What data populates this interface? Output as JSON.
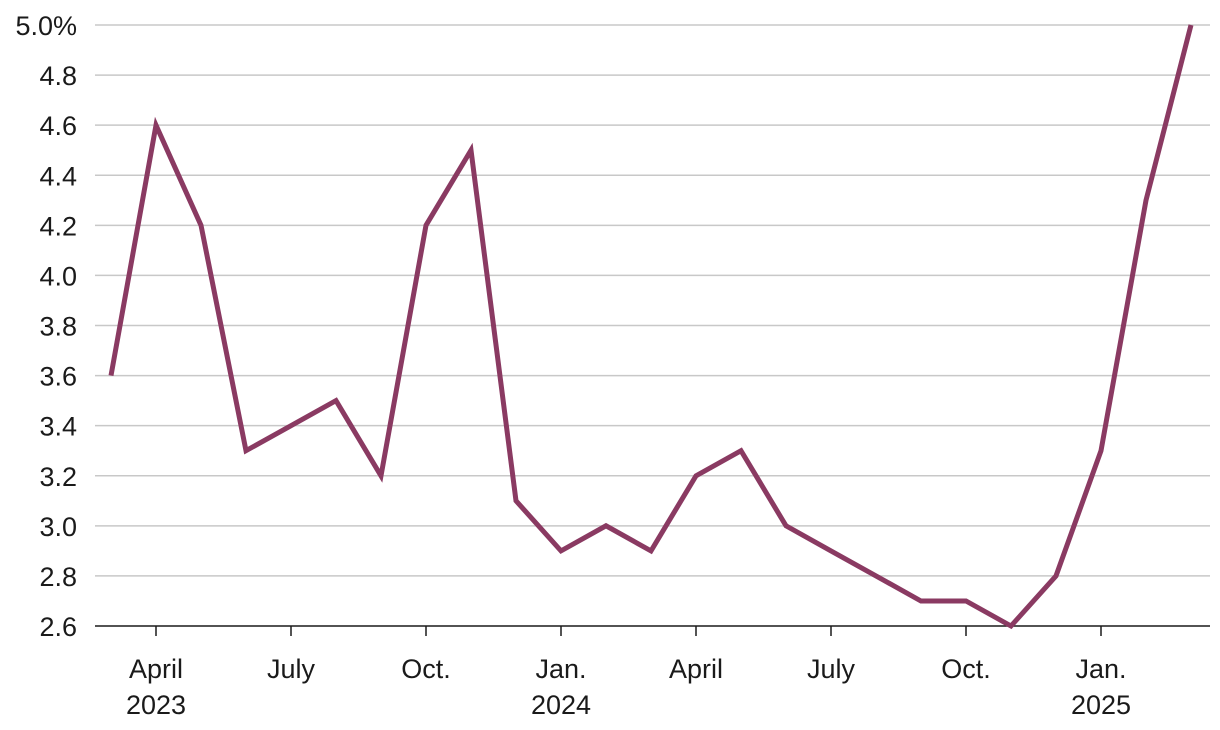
{
  "chart_data": {
    "type": "line",
    "title": "",
    "xlabel": "",
    "ylabel": "",
    "ylim": [
      2.6,
      5.0
    ],
    "y_ticks": [
      {
        "value": 5.0,
        "label": "5.0%"
      },
      {
        "value": 4.8,
        "label": "4.8"
      },
      {
        "value": 4.6,
        "label": "4.6"
      },
      {
        "value": 4.4,
        "label": "4.4"
      },
      {
        "value": 4.2,
        "label": "4.2"
      },
      {
        "value": 4.0,
        "label": "4.0"
      },
      {
        "value": 3.8,
        "label": "3.8"
      },
      {
        "value": 3.6,
        "label": "3.6"
      },
      {
        "value": 3.4,
        "label": "3.4"
      },
      {
        "value": 3.2,
        "label": "3.2"
      },
      {
        "value": 3.0,
        "label": "3.0"
      },
      {
        "value": 2.8,
        "label": "2.8"
      },
      {
        "value": 2.6,
        "label": "2.6"
      }
    ],
    "x_ticks": [
      {
        "date": "2023-04",
        "label": "April",
        "sublabel": "2023"
      },
      {
        "date": "2023-07",
        "label": "July",
        "sublabel": ""
      },
      {
        "date": "2023-10",
        "label": "Oct.",
        "sublabel": ""
      },
      {
        "date": "2024-01",
        "label": "Jan.",
        "sublabel": "2024"
      },
      {
        "date": "2024-04",
        "label": "April",
        "sublabel": ""
      },
      {
        "date": "2024-07",
        "label": "July",
        "sublabel": ""
      },
      {
        "date": "2024-10",
        "label": "Oct.",
        "sublabel": ""
      },
      {
        "date": "2025-01",
        "label": "Jan.",
        "sublabel": "2025"
      }
    ],
    "grid": true,
    "colors": {
      "line": "#8a3a62",
      "grid": "#c8c8c8",
      "axis": "#1a1a1a"
    },
    "series": [
      {
        "x": [
          "2023-03",
          "2023-04",
          "2023-05",
          "2023-06",
          "2023-07",
          "2023-08",
          "2023-09",
          "2023-10",
          "2023-11",
          "2023-12",
          "2024-01",
          "2024-02",
          "2024-03",
          "2024-04",
          "2024-05",
          "2024-06",
          "2024-07",
          "2024-08",
          "2024-09",
          "2024-10",
          "2024-11",
          "2024-12",
          "2025-01",
          "2025-02",
          "2025-03"
        ],
        "values": [
          3.6,
          4.6,
          4.2,
          3.3,
          3.4,
          3.5,
          3.2,
          4.2,
          4.5,
          3.1,
          2.9,
          3.0,
          2.9,
          3.2,
          3.3,
          3.0,
          2.9,
          2.8,
          2.7,
          2.7,
          2.6,
          2.8,
          3.3,
          4.3,
          5.0
        ]
      }
    ]
  }
}
